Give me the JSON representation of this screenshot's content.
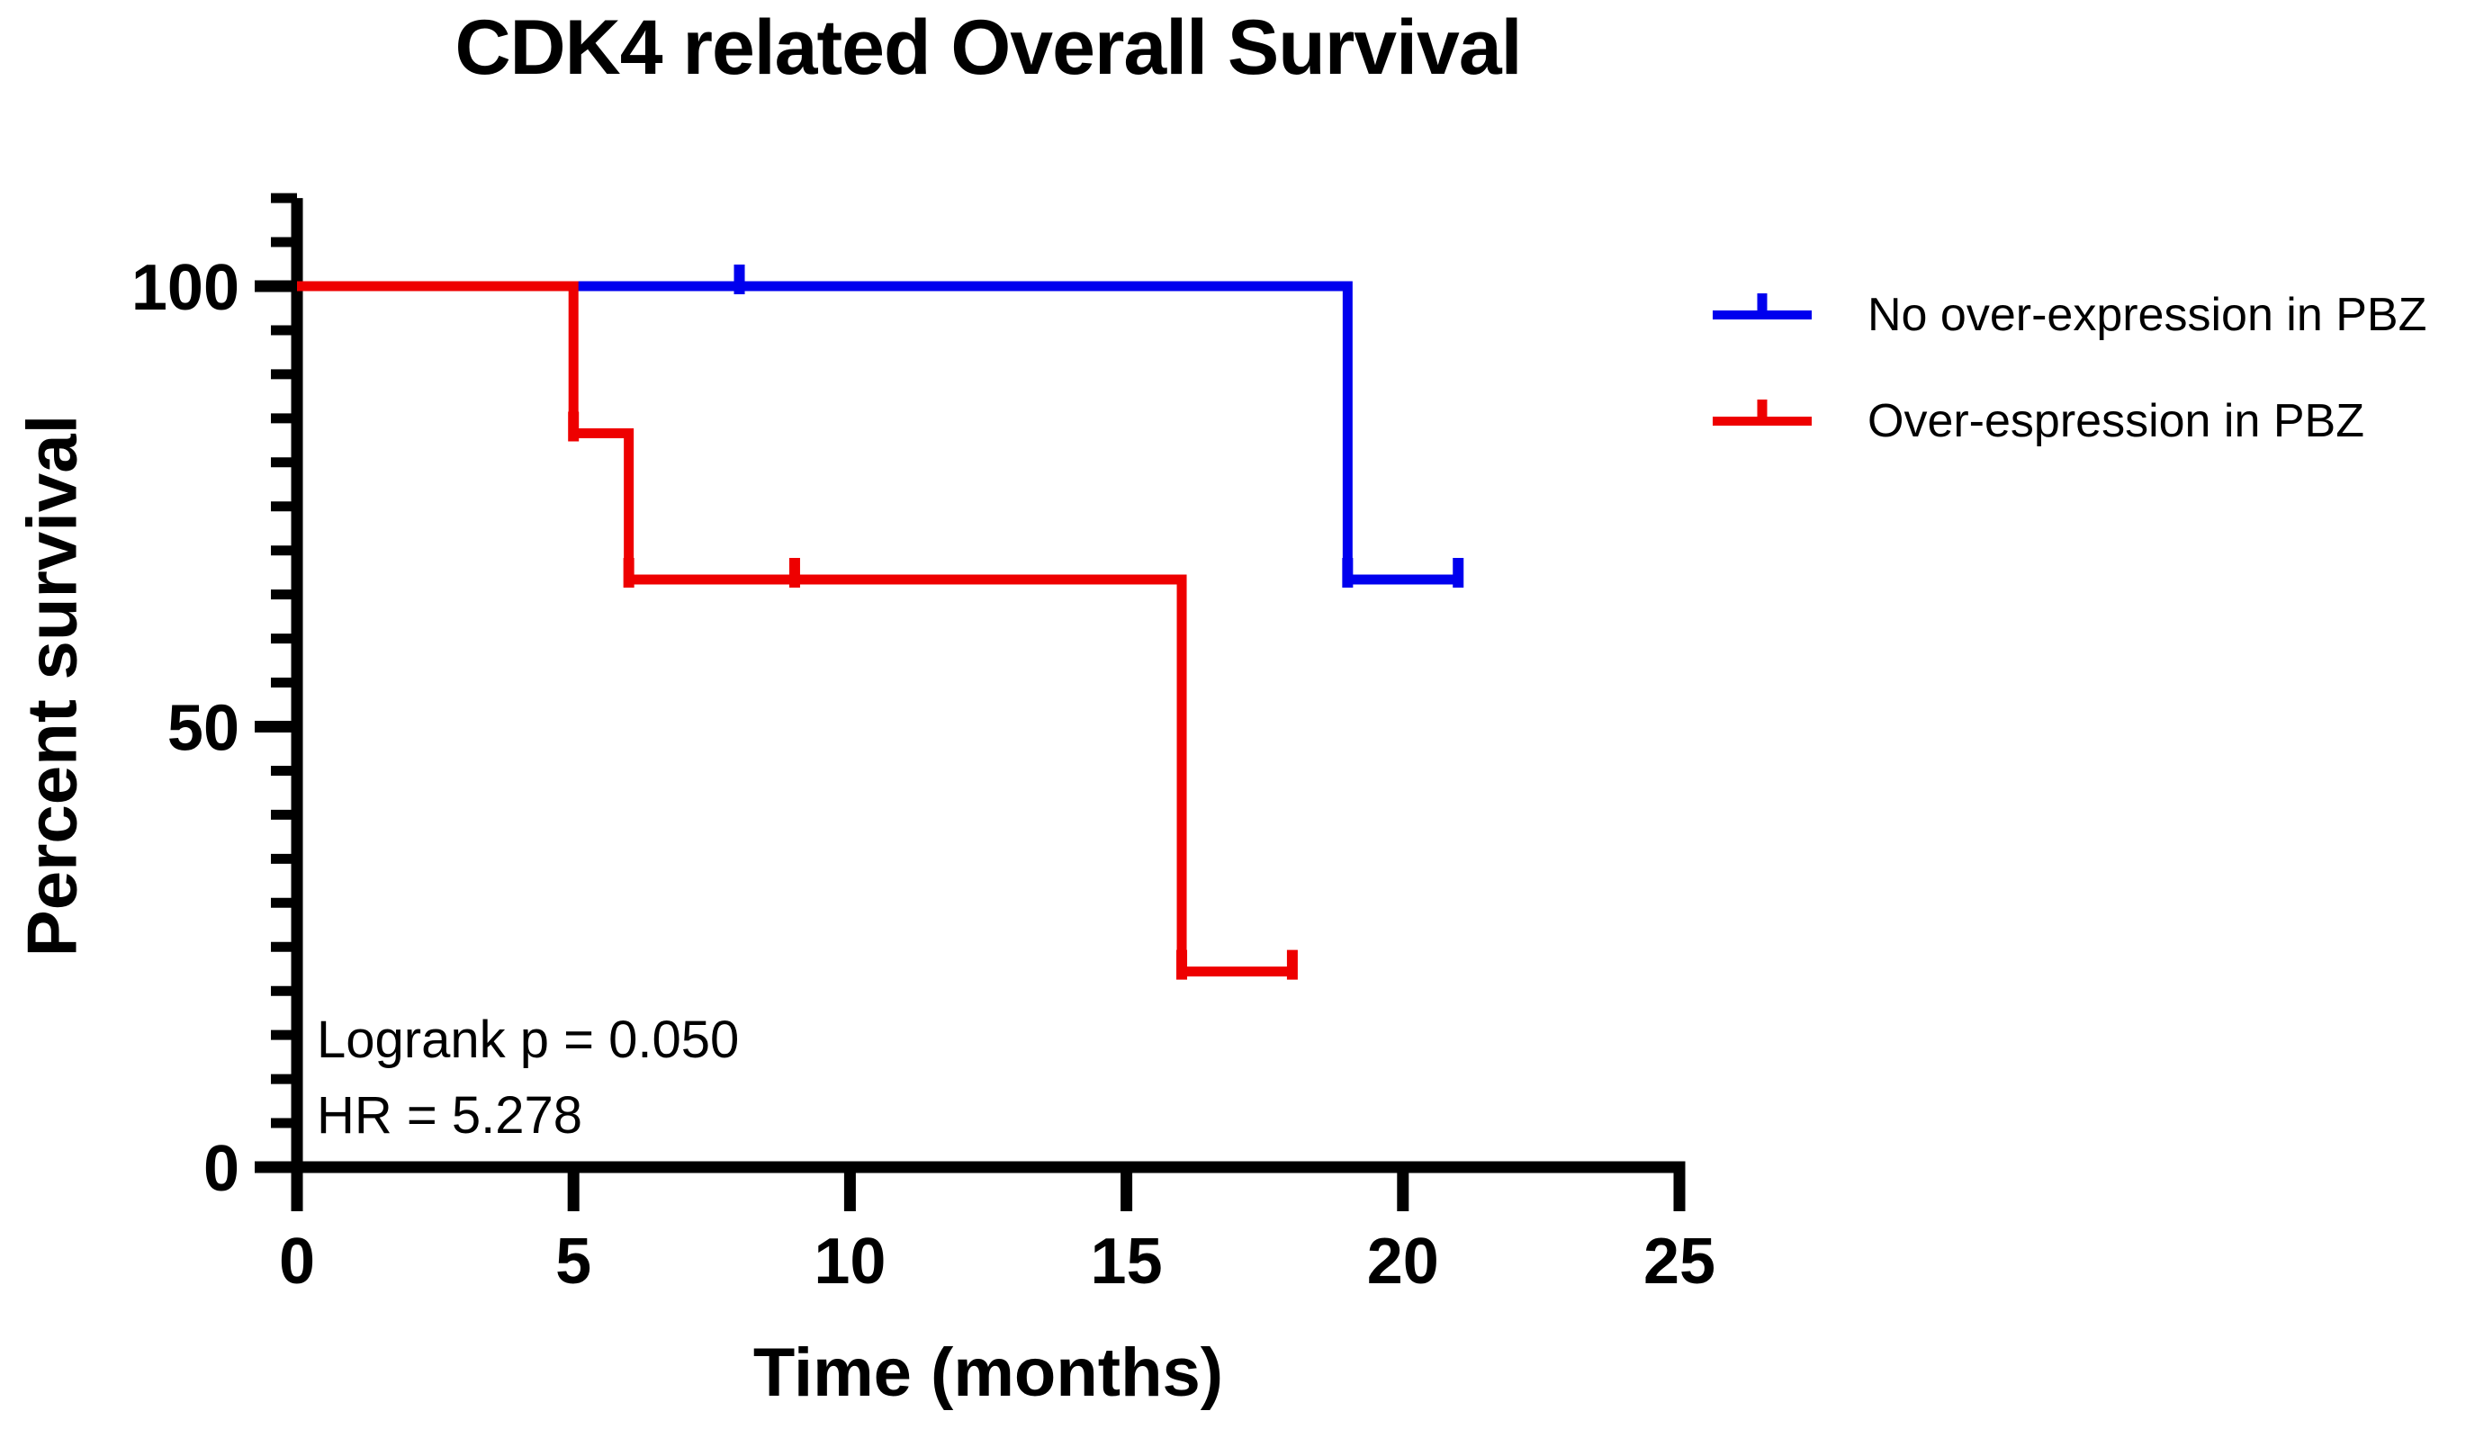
{
  "chart_data": {
    "type": "line",
    "subtype": "kaplan_meier_step",
    "title": "CDK4 related Overall Survival",
    "xlabel": "Time (months)",
    "ylabel": "Percent survival",
    "xlim": [
      0,
      25
    ],
    "ylim": [
      0,
      110
    ],
    "x_ticks": [
      0,
      5,
      10,
      15,
      20,
      25
    ],
    "y_major_ticks": [
      0,
      50,
      100
    ],
    "y_minor_tick_step": 5,
    "grid": false,
    "legend_position": "right",
    "background_color": "#FFFFFF",
    "axis_color": "#000000",
    "text_color": "#000000",
    "series": [
      {
        "name": "No over-expression in PBZ",
        "color": "#0000EE",
        "steps": [
          [
            0,
            100
          ],
          [
            19,
            100
          ],
          [
            19,
            66.7
          ],
          [
            21,
            66.7
          ]
        ],
        "censor_marks": [
          [
            8,
            100
          ],
          [
            19,
            66.7
          ],
          [
            21,
            66.7
          ]
        ]
      },
      {
        "name": "Over-espression in PBZ",
        "color": "#EE0000",
        "steps": [
          [
            0,
            100
          ],
          [
            5,
            100
          ],
          [
            5,
            83.3
          ],
          [
            6,
            83.3
          ],
          [
            6,
            66.7
          ],
          [
            16,
            66.7
          ],
          [
            16,
            22.2
          ],
          [
            18,
            22.2
          ]
        ],
        "censor_marks": [
          [
            5,
            83.3
          ],
          [
            6,
            66.7
          ],
          [
            9,
            66.7
          ],
          [
            16,
            22.2
          ],
          [
            18,
            22.2
          ]
        ]
      }
    ],
    "annotations": [
      {
        "text": "Logrank p = 0.050"
      },
      {
        "text": "HR = 5.278"
      }
    ]
  }
}
